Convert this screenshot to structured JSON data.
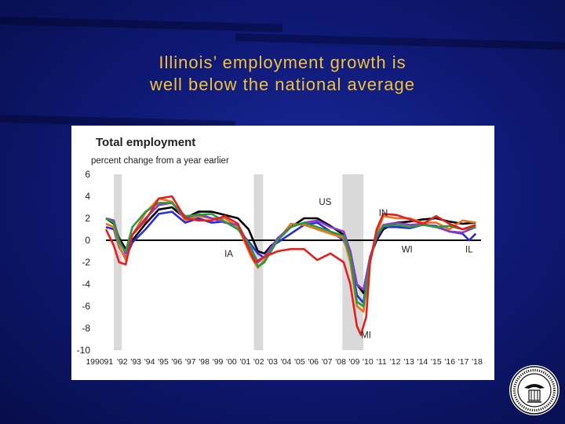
{
  "slide": {
    "title_line1": "Illinois’ employment growth is",
    "title_line2": "well below the national average",
    "background_color": "#0f1a78",
    "title_color": "#f2c23a"
  },
  "seal": {
    "icon": "federal-reserve-seal-icon"
  },
  "chart_data": {
    "type": "line",
    "title": "Total employment",
    "ylabel": "percent change from a year earlier",
    "xlabel": "",
    "ylim": [
      -10,
      6
    ],
    "yticks": [
      6,
      4,
      2,
      0,
      -2,
      -4,
      -6,
      -8,
      -10
    ],
    "xlim": [
      1990,
      2018.4
    ],
    "x_tick_labels": [
      "1990",
      "91",
      "'92",
      "'93",
      "'94",
      "'95",
      "'96",
      "'97",
      "'98",
      "'99",
      "'00",
      "'01",
      "'02",
      "'03",
      "'04",
      "'05",
      "'06",
      "'07",
      "'08",
      "'09",
      "'10",
      "'11",
      "'12",
      "'13",
      "'14",
      "'15",
      "'16",
      "'17",
      "'18"
    ],
    "recessions": [
      [
        1990.6,
        1991.2
      ],
      [
        2001.2,
        2001.9
      ],
      [
        2007.9,
        2009.5
      ]
    ],
    "grid": false,
    "annotations": [
      {
        "text": "US",
        "x": 2006.6,
        "y": 3.2
      },
      {
        "text": "IN",
        "x": 2011.0,
        "y": 2.2
      },
      {
        "text": "IA",
        "x": 1999.3,
        "y": -1.5
      },
      {
        "text": "WI",
        "x": 2012.8,
        "y": -1.1
      },
      {
        "text": "IL",
        "x": 2017.5,
        "y": -1.1
      },
      {
        "text": "MI",
        "x": 2009.7,
        "y": -8.9
      }
    ],
    "series": [
      {
        "name": "US",
        "color": "#000000",
        "x": [
          1990,
          1990.6,
          1991,
          1991.5,
          1992,
          1993,
          1994,
          1995,
          1996,
          1997,
          1998,
          1999,
          2000,
          2000.8,
          2001.5,
          2002,
          2002.5,
          2003,
          2004,
          2005,
          2006,
          2007,
          2008,
          2008.5,
          2009,
          2009.5,
          2010,
          2010.5,
          2011,
          2012,
          2013,
          2014,
          2015,
          2016,
          2017,
          2018
        ],
        "y": [
          2.0,
          1.5,
          0.2,
          -0.8,
          0.0,
          1.5,
          2.8,
          3.0,
          2.0,
          2.6,
          2.6,
          2.3,
          2.0,
          1.0,
          -1.0,
          -1.2,
          -0.5,
          0.0,
          1.2,
          2.0,
          2.0,
          1.3,
          0.5,
          -1.0,
          -4.0,
          -4.8,
          -1.5,
          0.0,
          1.0,
          1.6,
          1.7,
          1.9,
          2.0,
          1.7,
          1.5,
          1.6
        ]
      },
      {
        "name": "IL",
        "color": "#2b2bd8",
        "x": [
          1990,
          1990.6,
          1991,
          1991.5,
          1992,
          1993,
          1994,
          1995,
          1996,
          1997,
          1998,
          1999,
          2000,
          2001,
          2001.5,
          2002,
          2002.5,
          2003,
          2004,
          2005,
          2006,
          2007,
          2008,
          2008.5,
          2009,
          2009.5,
          2010,
          2010.5,
          2011,
          2012,
          2013,
          2014,
          2015,
          2016,
          2017,
          2017.5,
          2018
        ],
        "y": [
          1.2,
          1.0,
          -0.6,
          -1.6,
          -0.2,
          1.0,
          2.4,
          2.6,
          1.6,
          2.0,
          1.6,
          1.7,
          1.0,
          -0.4,
          -1.2,
          -1.6,
          -0.6,
          -0.2,
          0.6,
          1.4,
          1.6,
          0.8,
          0.0,
          -1.5,
          -5.0,
          -5.7,
          -1.6,
          0.2,
          1.2,
          1.2,
          1.1,
          1.4,
          1.3,
          0.8,
          0.6,
          0.0,
          0.6
        ]
      },
      {
        "name": "IN",
        "color": "#e8741e",
        "x": [
          1990,
          1990.6,
          1991,
          1991.5,
          1992,
          1993,
          1994,
          1995,
          1996,
          1997,
          1998,
          1999,
          2000,
          2001,
          2001.5,
          2002,
          2003,
          2004,
          2005,
          2006,
          2007,
          2008,
          2008.5,
          2009,
          2009.5,
          2010,
          2010.5,
          2011,
          2012,
          2013,
          2014,
          2015,
          2016,
          2017,
          2018
        ],
        "y": [
          1.5,
          1.2,
          -0.5,
          -1.8,
          0.5,
          2.5,
          3.8,
          3.5,
          1.8,
          2.2,
          2.0,
          2.0,
          1.2,
          -1.5,
          -2.5,
          -1.8,
          0.0,
          1.5,
          1.4,
          1.0,
          0.6,
          0.2,
          -2.0,
          -6.0,
          -6.5,
          -2.0,
          0.5,
          2.2,
          2.0,
          2.0,
          1.6,
          1.6,
          1.0,
          1.8,
          1.6
        ]
      },
      {
        "name": "IA",
        "color": "#8a3cc8",
        "x": [
          1990,
          1990.6,
          1991,
          1991.5,
          1992,
          1993,
          1994,
          1995,
          1996,
          1997,
          1998,
          1999,
          2000,
          2001,
          2001.5,
          2002,
          2003,
          2004,
          2005,
          2006,
          2007,
          2008,
          2008.5,
          2009,
          2009.5,
          2010,
          2010.5,
          2011,
          2012,
          2013,
          2014,
          2015,
          2016,
          2017,
          2018
        ],
        "y": [
          2.0,
          1.8,
          0.0,
          -1.2,
          0.5,
          2.0,
          3.2,
          3.4,
          2.0,
          2.4,
          2.0,
          1.6,
          1.4,
          -0.8,
          -2.0,
          -1.5,
          0.2,
          1.2,
          1.6,
          1.8,
          1.2,
          0.8,
          -1.0,
          -4.0,
          -4.5,
          -1.5,
          0.3,
          1.4,
          1.6,
          1.4,
          1.5,
          1.2,
          0.8,
          0.7,
          1.2
        ]
      },
      {
        "name": "WI",
        "color": "#2a9a3a",
        "x": [
          1990,
          1990.6,
          1991,
          1991.5,
          1992,
          1993,
          1994,
          1995,
          1996,
          1997,
          1998,
          1999,
          2000,
          2001,
          2001.5,
          2002,
          2003,
          2004,
          2005,
          2006,
          2007,
          2008,
          2008.5,
          2009,
          2009.5,
          2010,
          2010.5,
          2011,
          2012,
          2013,
          2014,
          2015,
          2016,
          2017,
          2018
        ],
        "y": [
          2.0,
          1.6,
          -0.2,
          -1.0,
          1.2,
          2.6,
          3.4,
          3.4,
          2.2,
          2.3,
          2.4,
          1.7,
          1.0,
          -0.6,
          -2.4,
          -2.0,
          0.0,
          1.2,
          1.6,
          1.2,
          0.8,
          0.4,
          -1.5,
          -5.6,
          -6.0,
          -1.8,
          0.5,
          1.3,
          1.4,
          1.2,
          1.4,
          1.2,
          1.3,
          1.0,
          1.2
        ]
      },
      {
        "name": "MI",
        "color": "#e22020",
        "x": [
          1990,
          1990.6,
          1991,
          1991.5,
          1992,
          1993,
          1994,
          1995,
          1996,
          1997,
          1998,
          1999,
          2000,
          2000.7,
          2001.3,
          2002,
          2003,
          2004,
          2005,
          2006,
          2007,
          2008,
          2008.5,
          2009,
          2009.3,
          2009.7,
          2010,
          2010.5,
          2011,
          2012,
          2013,
          2014,
          2015,
          2016,
          2017,
          2018
        ],
        "y": [
          1.0,
          -0.5,
          -2.0,
          -2.2,
          0.5,
          1.8,
          3.8,
          4.0,
          2.0,
          1.8,
          1.8,
          2.2,
          1.5,
          -0.5,
          -2.0,
          -1.5,
          -1.0,
          -0.8,
          -0.8,
          -1.8,
          -1.2,
          -2.0,
          -4.0,
          -7.8,
          -8.6,
          -7.0,
          -2.0,
          1.0,
          2.4,
          2.3,
          1.9,
          1.5,
          2.2,
          1.5,
          1.0,
          1.4
        ]
      }
    ]
  }
}
